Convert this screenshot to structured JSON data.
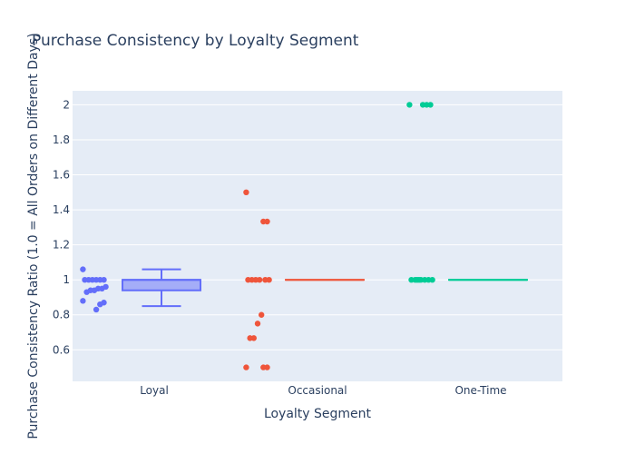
{
  "chart_data": {
    "type": "box",
    "title": "Purchase Consistency by Loyalty Segment",
    "xlabel": "Loyalty Segment",
    "ylabel": "Purchase Consistency Ratio (1.0 = All Orders on Different Days)",
    "categories": [
      "Loyal",
      "Occasional",
      "One-Time"
    ],
    "ylim": [
      0.42,
      2.08
    ],
    "yticks": [
      0.6,
      0.8,
      1,
      1.2,
      1.4,
      1.6,
      1.8,
      2
    ],
    "ytick_labels": [
      "0.6",
      "0.8",
      "1",
      "1.2",
      "1.4",
      "1.6",
      "1.8",
      "2"
    ],
    "grid": true,
    "legend": "none",
    "series": [
      {
        "category": "Loyal",
        "color": "#636efa",
        "box": {
          "min": 0.85,
          "q1": 0.94,
          "median": 1.0,
          "q3": 1.0,
          "max": 1.06
        },
        "points": [
          1.06,
          1.0,
          1.0,
          1.0,
          1.0,
          1.0,
          1.0,
          0.96,
          0.95,
          0.95,
          0.94,
          0.94,
          0.93,
          0.88,
          0.87,
          0.86,
          0.83
        ]
      },
      {
        "category": "Occasional",
        "color": "#ef553b",
        "box": {
          "min": 1.0,
          "q1": 1.0,
          "median": 1.0,
          "q3": 1.0,
          "max": 1.0
        },
        "points": [
          1.5,
          1.333,
          1.333,
          1.0,
          1.0,
          1.0,
          1.0,
          1.0,
          1.0,
          0.8,
          0.75,
          0.667,
          0.667,
          0.5,
          0.5,
          0.5
        ]
      },
      {
        "category": "One-Time",
        "color": "#00cc96",
        "box": {
          "min": 1.0,
          "q1": 1.0,
          "median": 1.0,
          "q3": 1.0,
          "max": 1.0
        },
        "points": [
          2.0,
          2.0,
          2.0,
          2.0,
          1.0,
          1.0,
          1.0,
          1.0,
          1.0,
          1.0,
          1.0,
          1.0
        ]
      }
    ]
  }
}
